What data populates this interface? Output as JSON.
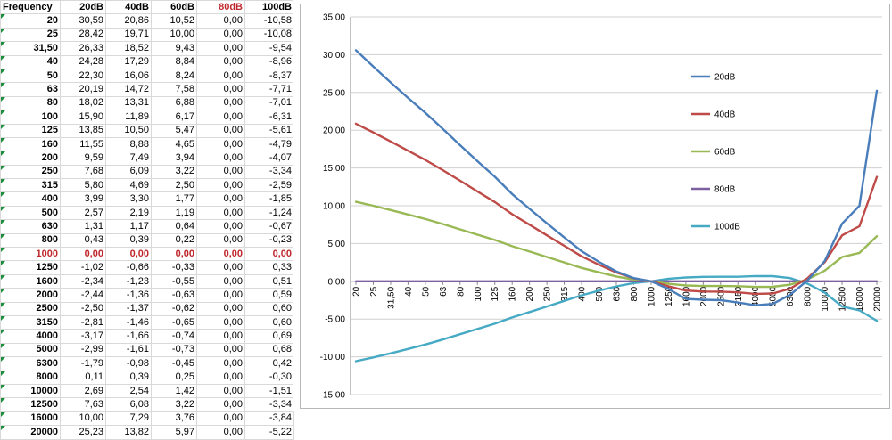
{
  "table": {
    "headers": [
      "Frequency",
      "20dB",
      "40dB",
      "60dB",
      "80dB",
      "100dB"
    ],
    "highlight_header_index": 4,
    "highlight_row_index": 17,
    "rows": [
      [
        "20",
        "30,59",
        "20,86",
        "10,52",
        "0,00",
        "-10,58"
      ],
      [
        "25",
        "28,42",
        "19,71",
        "10,00",
        "0,00",
        "-10,08"
      ],
      [
        "31,50",
        "26,33",
        "18,52",
        "9,43",
        "0,00",
        "-9,54"
      ],
      [
        "40",
        "24,28",
        "17,29",
        "8,84",
        "0,00",
        "-8,96"
      ],
      [
        "50",
        "22,30",
        "16,06",
        "8,24",
        "0,00",
        "-8,37"
      ],
      [
        "63",
        "20,19",
        "14,72",
        "7,58",
        "0,00",
        "-7,71"
      ],
      [
        "80",
        "18,02",
        "13,31",
        "6,88",
        "0,00",
        "-7,01"
      ],
      [
        "100",
        "15,90",
        "11,89",
        "6,17",
        "0,00",
        "-6,31"
      ],
      [
        "125",
        "13,85",
        "10,50",
        "5,47",
        "0,00",
        "-5,61"
      ],
      [
        "160",
        "11,55",
        "8,88",
        "4,65",
        "0,00",
        "-4,79"
      ],
      [
        "200",
        "9,59",
        "7,49",
        "3,94",
        "0,00",
        "-4,07"
      ],
      [
        "250",
        "7,68",
        "6,09",
        "3,22",
        "0,00",
        "-3,34"
      ],
      [
        "315",
        "5,80",
        "4,69",
        "2,50",
        "0,00",
        "-2,59"
      ],
      [
        "400",
        "3,99",
        "3,30",
        "1,77",
        "0,00",
        "-1,85"
      ],
      [
        "500",
        "2,57",
        "2,19",
        "1,19",
        "0,00",
        "-1,24"
      ],
      [
        "630",
        "1,31",
        "1,17",
        "0,64",
        "0,00",
        "-0,67"
      ],
      [
        "800",
        "0,43",
        "0,39",
        "0,22",
        "0,00",
        "-0,23"
      ],
      [
        "1000",
        "0,00",
        "0,00",
        "0,00",
        "0,00",
        "0,00"
      ],
      [
        "1250",
        "-1,02",
        "-0,66",
        "-0,33",
        "0,00",
        "0,33"
      ],
      [
        "1600",
        "-2,34",
        "-1,23",
        "-0,55",
        "0,00",
        "0,51"
      ],
      [
        "2000",
        "-2,44",
        "-1,36",
        "-0,63",
        "0,00",
        "0,59"
      ],
      [
        "2500",
        "-2,50",
        "-1,37",
        "-0,62",
        "0,00",
        "0,60"
      ],
      [
        "3150",
        "-2,81",
        "-1,46",
        "-0,65",
        "0,00",
        "0,60"
      ],
      [
        "4000",
        "-3,17",
        "-1,66",
        "-0,74",
        "0,00",
        "0,69"
      ],
      [
        "5000",
        "-2,99",
        "-1,61",
        "-0,73",
        "0,00",
        "0,68"
      ],
      [
        "6300",
        "-1,79",
        "-0,98",
        "-0,45",
        "0,00",
        "0,42"
      ],
      [
        "8000",
        "0,11",
        "0,39",
        "0,25",
        "0,00",
        "-0,30"
      ],
      [
        "10000",
        "2,69",
        "2,54",
        "1,42",
        "0,00",
        "-1,51"
      ],
      [
        "12500",
        "7,63",
        "6,08",
        "3,22",
        "0,00",
        "-3,34"
      ],
      [
        "16000",
        "10,00",
        "7,29",
        "3,76",
        "0,00",
        "-3,84"
      ],
      [
        "20000",
        "25,23",
        "13,82",
        "5,97",
        "0,00",
        "-5,22"
      ]
    ]
  },
  "chart_data": {
    "type": "line",
    "categories": [
      "20",
      "25",
      "31,50",
      "40",
      "50",
      "63",
      "80",
      "100",
      "125",
      "160",
      "200",
      "250",
      "315",
      "400",
      "500",
      "630",
      "800",
      "1000",
      "1250",
      "1600",
      "2000",
      "2500",
      "3150",
      "4000",
      "5000",
      "6300",
      "8000",
      "10000",
      "12500",
      "16000",
      "20000"
    ],
    "ylim": [
      -15,
      35
    ],
    "yticks": [
      "-15,00",
      "-10,00",
      "-5,00",
      "0,00",
      "5,00",
      "10,00",
      "15,00",
      "20,00",
      "25,00",
      "30,00",
      "35,00"
    ],
    "ytick_values": [
      -15,
      -10,
      -5,
      0,
      5,
      10,
      15,
      20,
      25,
      30,
      35
    ],
    "grid": "horizontal",
    "legend_position": "right",
    "series": [
      {
        "name": "20dB",
        "color": "#4a7ebb",
        "values": [
          30.59,
          28.42,
          26.33,
          24.28,
          22.3,
          20.19,
          18.02,
          15.9,
          13.85,
          11.55,
          9.59,
          7.68,
          5.8,
          3.99,
          2.57,
          1.31,
          0.43,
          0.0,
          -1.02,
          -2.34,
          -2.44,
          -2.5,
          -2.81,
          -3.17,
          -2.99,
          -1.79,
          0.11,
          2.69,
          7.63,
          10.0,
          25.23
        ]
      },
      {
        "name": "40dB",
        "color": "#be4b48",
        "values": [
          20.86,
          19.71,
          18.52,
          17.29,
          16.06,
          14.72,
          13.31,
          11.89,
          10.5,
          8.88,
          7.49,
          6.09,
          4.69,
          3.3,
          2.19,
          1.17,
          0.39,
          0.0,
          -0.66,
          -1.23,
          -1.36,
          -1.37,
          -1.46,
          -1.66,
          -1.61,
          -0.98,
          0.39,
          2.54,
          6.08,
          7.29,
          13.82
        ]
      },
      {
        "name": "60dB",
        "color": "#98b954",
        "values": [
          10.52,
          10.0,
          9.43,
          8.84,
          8.24,
          7.58,
          6.88,
          6.17,
          5.47,
          4.65,
          3.94,
          3.22,
          2.5,
          1.77,
          1.19,
          0.64,
          0.22,
          0.0,
          -0.33,
          -0.55,
          -0.63,
          -0.62,
          -0.65,
          -0.74,
          -0.73,
          -0.45,
          0.25,
          1.42,
          3.22,
          3.76,
          5.97
        ]
      },
      {
        "name": "80dB",
        "color": "#7d60a0",
        "values": [
          0,
          0,
          0,
          0,
          0,
          0,
          0,
          0,
          0,
          0,
          0,
          0,
          0,
          0,
          0,
          0,
          0,
          0,
          0,
          0,
          0,
          0,
          0,
          0,
          0,
          0,
          0,
          0,
          0,
          0,
          0
        ]
      },
      {
        "name": "100dB",
        "color": "#46aac5",
        "values": [
          -10.58,
          -10.08,
          -9.54,
          -8.96,
          -8.37,
          -7.71,
          -7.01,
          -6.31,
          -5.61,
          -4.79,
          -4.07,
          -3.34,
          -2.59,
          -1.85,
          -1.24,
          -0.67,
          -0.23,
          0.0,
          0.33,
          0.51,
          0.59,
          0.6,
          0.6,
          0.69,
          0.68,
          0.42,
          -0.3,
          -1.51,
          -3.34,
          -3.84,
          -5.22
        ]
      }
    ]
  }
}
